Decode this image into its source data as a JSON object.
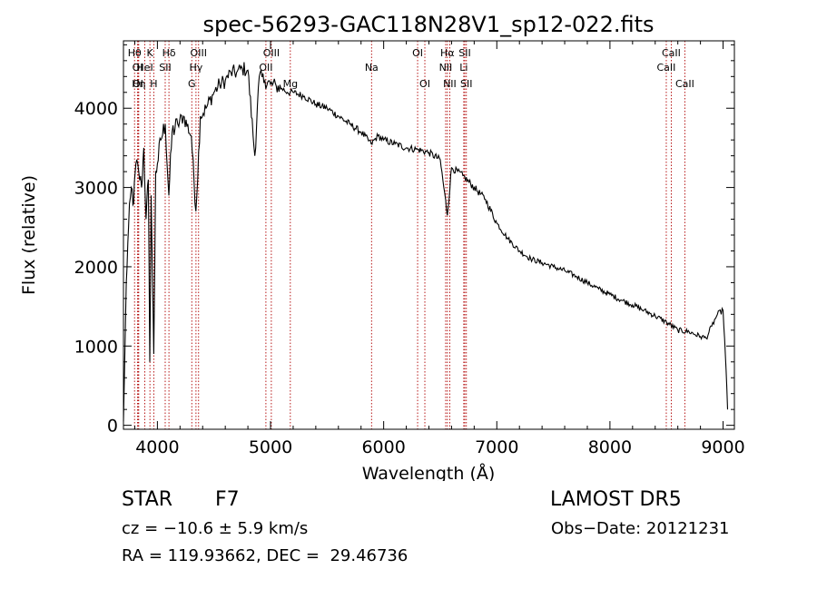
{
  "chart_data": {
    "type": "line",
    "title": "spec-56293-GAC118N28V1_sp12-022.fits",
    "xlabel": "Wavelength (Å)",
    "ylabel": "Flux (relative)",
    "xlim": [
      3700,
      9100
    ],
    "ylim": [
      -50,
      4850
    ],
    "xticks": [
      4000,
      5000,
      6000,
      7000,
      8000,
      9000
    ],
    "yticks": [
      0,
      1000,
      2000,
      3000,
      4000
    ],
    "grid": false,
    "series": [
      {
        "anchors": [
          [
            3700,
            50
          ],
          [
            3710,
            700
          ],
          [
            3725,
            1800
          ],
          [
            3745,
            2500
          ],
          [
            3770,
            3000
          ],
          [
            3790,
            2800
          ],
          [
            3810,
            3300
          ],
          [
            3835,
            3200
          ],
          [
            3860,
            3000
          ],
          [
            3880,
            3500
          ],
          [
            3900,
            2600
          ],
          [
            3920,
            3100
          ],
          [
            3933,
            800
          ],
          [
            3945,
            2900
          ],
          [
            3968,
            900
          ],
          [
            3985,
            3200
          ],
          [
            4000,
            3300
          ],
          [
            4030,
            3600
          ],
          [
            4070,
            3800
          ],
          [
            4101,
            2900
          ],
          [
            4130,
            3700
          ],
          [
            4180,
            3800
          ],
          [
            4230,
            3900
          ],
          [
            4300,
            3650
          ],
          [
            4340,
            2700
          ],
          [
            4380,
            3900
          ],
          [
            4430,
            4000
          ],
          [
            4500,
            4200
          ],
          [
            4550,
            4300
          ],
          [
            4600,
            4350
          ],
          [
            4650,
            4450
          ],
          [
            4700,
            4450
          ],
          [
            4750,
            4500
          ],
          [
            4800,
            4480
          ],
          [
            4861,
            3400
          ],
          [
            4900,
            4400
          ],
          [
            4950,
            4350
          ],
          [
            5000,
            4300
          ],
          [
            5050,
            4280
          ],
          [
            5100,
            4250
          ],
          [
            5150,
            4200
          ],
          [
            5200,
            4200
          ],
          [
            5300,
            4150
          ],
          [
            5400,
            4050
          ],
          [
            5500,
            4000
          ],
          [
            5600,
            3900
          ],
          [
            5700,
            3800
          ],
          [
            5800,
            3700
          ],
          [
            5890,
            3550
          ],
          [
            5950,
            3650
          ],
          [
            6000,
            3600
          ],
          [
            6100,
            3550
          ],
          [
            6200,
            3500
          ],
          [
            6300,
            3480
          ],
          [
            6400,
            3440
          ],
          [
            6500,
            3350
          ],
          [
            6563,
            2650
          ],
          [
            6600,
            3250
          ],
          [
            6700,
            3150
          ],
          [
            6800,
            3000
          ],
          [
            6900,
            2850
          ],
          [
            7000,
            2550
          ],
          [
            7100,
            2350
          ],
          [
            7200,
            2200
          ],
          [
            7300,
            2100
          ],
          [
            7400,
            2050
          ],
          [
            7500,
            2000
          ],
          [
            7600,
            1950
          ],
          [
            7700,
            1880
          ],
          [
            7800,
            1800
          ],
          [
            7900,
            1720
          ],
          [
            8000,
            1650
          ],
          [
            8100,
            1580
          ],
          [
            8200,
            1520
          ],
          [
            8300,
            1450
          ],
          [
            8400,
            1380
          ],
          [
            8500,
            1300
          ],
          [
            8600,
            1200
          ],
          [
            8700,
            1180
          ],
          [
            8800,
            1120
          ],
          [
            8850,
            1100
          ],
          [
            8900,
            1250
          ],
          [
            8950,
            1400
          ],
          [
            9000,
            1450
          ],
          [
            9020,
            900
          ],
          [
            9040,
            200
          ]
        ]
      }
    ],
    "lines": [
      {
        "label": "Hθ",
        "x": 3798,
        "row": 1
      },
      {
        "label": "OI",
        "x": 3825,
        "row": 2
      },
      {
        "label": "OI",
        "x": 3828,
        "row": 3
      },
      {
        "label": "Hη",
        "x": 3835,
        "row": 3
      },
      {
        "label": "HeI",
        "x": 3889,
        "row": 2
      },
      {
        "label": "K",
        "x": 3934,
        "row": 1
      },
      {
        "label": "H",
        "x": 3968,
        "row": 3
      },
      {
        "label": "Hδ",
        "x": 4102,
        "row": 1
      },
      {
        "label": "SII",
        "x": 4069,
        "row": 2
      },
      {
        "label": "G",
        "x": 4304,
        "row": 3
      },
      {
        "label": "OIII",
        "x": 4364,
        "row": 1
      },
      {
        "label": "Hγ",
        "x": 4341,
        "row": 2
      },
      {
        "label": "OIII",
        "x": 5007,
        "row": 1
      },
      {
        "label": "OII",
        "x": 4959,
        "row": 2
      },
      {
        "label": "Mg",
        "x": 5175,
        "row": 3
      },
      {
        "label": "Na",
        "x": 5893,
        "row": 2
      },
      {
        "label": "OI",
        "x": 6300,
        "row": 1
      },
      {
        "label": "OI",
        "x": 6364,
        "row": 3
      },
      {
        "label": "Hα",
        "x": 6563,
        "row": 1
      },
      {
        "label": "SII",
        "x": 6717,
        "row": 1
      },
      {
        "label": "NII",
        "x": 6548,
        "row": 2
      },
      {
        "label": "Li",
        "x": 6708,
        "row": 2
      },
      {
        "label": "NII",
        "x": 6584,
        "row": 3
      },
      {
        "label": "SII",
        "x": 6731,
        "row": 3
      },
      {
        "label": "CaII",
        "x": 8542,
        "row": 1
      },
      {
        "label": "CaII",
        "x": 8498,
        "row": 2
      },
      {
        "label": "CaII",
        "x": 8662,
        "row": 3
      }
    ]
  },
  "footer": {
    "class_label": "STAR",
    "subclass": "F7",
    "survey": "LAMOST DR5",
    "cz": "cz = −10.6 ± 5.9 km/s",
    "obs_date": "Obs−Date: 20121231",
    "coords": "RA = 119.93662, DEC =  29.46736"
  }
}
